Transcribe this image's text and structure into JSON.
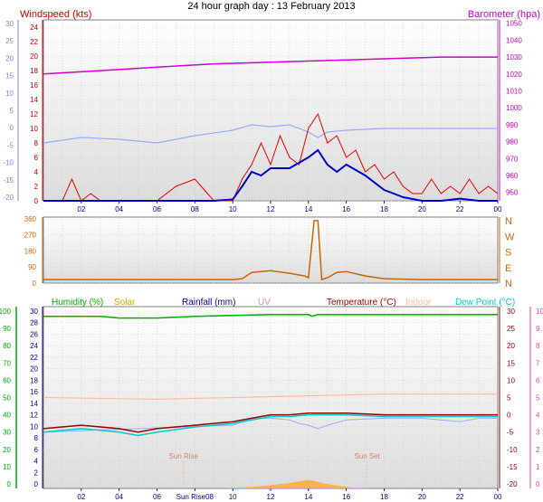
{
  "title": "24 hour graph day : 13 February 2013",
  "colors": {
    "windspeed": "#cc0000",
    "windgust": "#ee0000",
    "windavg": "#0000cc",
    "barometer": "#cc00cc",
    "temperature_neg": "#99aaff",
    "direction": "#cc6600",
    "humidity": "#00aa00",
    "solar": "#ccaa00",
    "rainfall": "#000099",
    "uv": "#cc88cc",
    "temperature": "#990000",
    "indoor": "#ffbb99",
    "dewpoint": "#00cccc",
    "solar_fill": "#ffaa33",
    "leftaxis": "#7788dd",
    "rightaxis": "#dd00dd",
    "pinkaxis": "#dd44aa"
  },
  "chart_data": [
    {
      "id": "wind-baro",
      "type": "line",
      "legend_left": "Windspeed (kts)",
      "legend_right": "Barometer (hpa)",
      "x_ticks": [
        "02",
        "04",
        "06",
        "08",
        "10",
        "12",
        "14",
        "16",
        "18",
        "20",
        "22",
        "00"
      ],
      "y_left_ticks": [
        "24",
        "22",
        "20",
        "18",
        "16",
        "14",
        "12",
        "10",
        "8",
        "6",
        "4",
        "2",
        "0"
      ],
      "y_left_ylim": [
        0,
        25
      ],
      "y_far_left_ticks": [
        "30",
        "25",
        "20",
        "15",
        "10",
        "5",
        "0",
        "-5",
        "-10",
        "-15",
        "-20"
      ],
      "y_right_ticks": [
        "1050",
        "1040",
        "1030",
        "1020",
        "1010",
        "1000",
        "990",
        "980",
        "970",
        "960",
        "950"
      ],
      "y_right_ylim": [
        945,
        1052
      ],
      "barometer": {
        "x": [
          0,
          3,
          6,
          9,
          12,
          15,
          18,
          21,
          24
        ],
        "values": [
          1020,
          1022,
          1024,
          1026,
          1027,
          1028,
          1029,
          1030,
          1030
        ]
      },
      "temperature": {
        "x": [
          0,
          2,
          4,
          5,
          6,
          8,
          10,
          11,
          12,
          13,
          14,
          14.5,
          15,
          16,
          18,
          20,
          22,
          24
        ],
        "values": [
          -4,
          -2.5,
          -3,
          -3.5,
          -4,
          -2,
          -0.5,
          1,
          0.5,
          1,
          -1,
          -2.5,
          -1,
          -0.5,
          0,
          0,
          0,
          0
        ]
      },
      "wind_avg": {
        "x": [
          0,
          9,
          10,
          10.5,
          11,
          11.5,
          12,
          13,
          14,
          14.5,
          15,
          15.5,
          16,
          17,
          18,
          18.5,
          19,
          20,
          21,
          22,
          23,
          24
        ],
        "values": [
          0,
          0,
          0.2,
          2,
          4,
          3.5,
          4.5,
          4.5,
          6,
          7,
          5,
          4,
          5,
          3.5,
          1.5,
          1,
          0.5,
          0,
          0,
          0.3,
          0,
          0
        ]
      },
      "wind_gust": {
        "x": [
          0,
          1,
          1.5,
          2,
          2.5,
          3,
          3.5,
          4,
          5,
          6,
          7,
          8,
          9,
          10,
          10.5,
          11,
          11.5,
          12,
          12.5,
          13,
          13.5,
          14,
          14.5,
          15,
          15.5,
          16,
          16.5,
          17,
          17.5,
          18,
          18.5,
          19,
          19.5,
          20,
          20.5,
          21,
          21.5,
          22,
          22.5,
          23,
          23.5,
          24
        ],
        "values": [
          0,
          0,
          3,
          0,
          1,
          0,
          0,
          0,
          0,
          0,
          2,
          3,
          0,
          0,
          3,
          5,
          8,
          5,
          9,
          6,
          5,
          10,
          12,
          8,
          9,
          6,
          7,
          4,
          5,
          3,
          4,
          2,
          1,
          1,
          3,
          1,
          2,
          1,
          3,
          1,
          2,
          1
        ]
      }
    },
    {
      "id": "direction",
      "type": "line",
      "y_left_ticks": [
        "360",
        "270",
        "180",
        "90",
        "0"
      ],
      "y_right_ticks": [
        "N",
        "W",
        "S",
        "E",
        "N"
      ],
      "ylim": [
        0,
        370
      ],
      "values": {
        "x": [
          0,
          9,
          10,
          10.5,
          11,
          12,
          13,
          13.8,
          14,
          14.3,
          14.5,
          14.7,
          15,
          15.5,
          16,
          17,
          18,
          20,
          22,
          24
        ],
        "values": [
          20,
          20,
          20,
          25,
          60,
          70,
          55,
          40,
          30,
          350,
          350,
          20,
          30,
          60,
          65,
          40,
          25,
          20,
          20,
          20
        ]
      }
    },
    {
      "id": "climate",
      "type": "line",
      "legend_top": [
        "Humidity (%)",
        "Solar",
        "Rainfall (mm)",
        "UV",
        "Temperature (°C)",
        "Indoor",
        "Dew Point (°C)"
      ],
      "x_ticks": [
        "02",
        "04",
        "06",
        "Sun Rise08",
        "10",
        "12",
        "14",
        "16",
        "18",
        "20",
        "22",
        "00"
      ],
      "y_far_left_ticks": [
        "100",
        "90",
        "80",
        "70",
        "60",
        "50",
        "40",
        "30",
        "20",
        "10",
        "0"
      ],
      "y_left_ticks": [
        "30",
        "28",
        "26",
        "24",
        "22",
        "20",
        "18",
        "16",
        "14",
        "12",
        "10",
        "8",
        "6",
        "4",
        "2",
        "0"
      ],
      "y_right_ticks": [
        "30",
        "25",
        "20",
        "15",
        "10",
        "5",
        "0",
        "-5",
        "-10",
        "-15",
        "-20"
      ],
      "y_far_right_ticks": [
        "10",
        "9",
        "8",
        "7",
        "6",
        "5",
        "4",
        "3",
        "2",
        "1",
        "0"
      ],
      "temp_ylim": [
        -20,
        30
      ],
      "humidity": {
        "x": [
          0,
          3,
          4,
          6,
          8,
          12,
          14,
          14.2,
          14.5,
          16,
          24
        ],
        "values": [
          97,
          97,
          96,
          96,
          97,
          98,
          98,
          97,
          98,
          98,
          98
        ]
      },
      "temperature": {
        "x": [
          0,
          2,
          3,
          4,
          5,
          6,
          8,
          9,
          10,
          11,
          12,
          13,
          14,
          15,
          16,
          18,
          20,
          22,
          24
        ],
        "values": [
          -4,
          -3,
          -3.5,
          -4,
          -5,
          -4,
          -3,
          -2.5,
          -2,
          -1,
          0,
          0,
          0.5,
          0.5,
          0.5,
          0,
          0,
          0,
          0
        ]
      },
      "dewpoint": {
        "x": [
          0,
          2,
          3,
          4,
          5,
          6,
          8,
          9,
          10,
          11,
          12,
          13,
          14,
          15,
          16,
          18,
          20,
          22,
          24
        ],
        "values": [
          -5,
          -4,
          -4.5,
          -5,
          -6,
          -5,
          -3.5,
          -3,
          -2.5,
          -1.5,
          -0.5,
          -0.5,
          0,
          0,
          0,
          -0.5,
          -0.5,
          -0.5,
          -0.5
        ]
      },
      "temperature_light": {
        "x": [
          0,
          10,
          11,
          12,
          13,
          13.5,
          14,
          14.5,
          15,
          16,
          18,
          20,
          21,
          22,
          23,
          24
        ],
        "values": [
          -5,
          -3,
          -1,
          -1,
          -1.5,
          -2.5,
          -3,
          -4,
          -3,
          -1.5,
          -1,
          -1,
          -1.5,
          -2,
          -1,
          -1
        ]
      },
      "indoor": {
        "x": [
          0,
          6,
          10,
          14,
          18,
          24
        ],
        "values": [
          5,
          4.5,
          5,
          5.5,
          6,
          6
        ]
      },
      "solar": {
        "x": [
          9.5,
          10,
          11,
          12,
          13,
          14,
          14.5,
          15,
          16,
          16.5,
          17
        ],
        "values": [
          0,
          0.1,
          0.3,
          0.6,
          1.0,
          1.6,
          1.2,
          0.8,
          0.3,
          0.1,
          0
        ]
      },
      "annotations": [
        "Sun Rise",
        "Sun Set"
      ]
    }
  ]
}
